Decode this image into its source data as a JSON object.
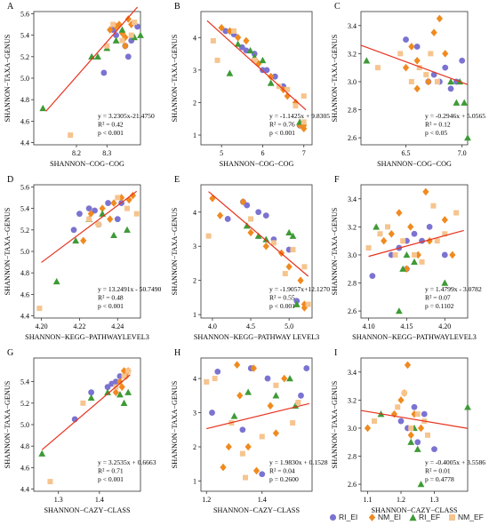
{
  "colors": {
    "RI_EI": "#7b73d1",
    "NM_EI": "#f08a1f",
    "RI_EF": "#3e9a36",
    "NM_EF": "#f6c48e",
    "fit": "#e8321e",
    "frame": "#333333"
  },
  "legend": [
    {
      "key": "RI_EI",
      "label": "RI_EI",
      "shape": "circle"
    },
    {
      "key": "NM_EI",
      "label": "NM_EI",
      "shape": "diamond"
    },
    {
      "key": "RI_EF",
      "label": "RI_EF",
      "shape": "triangle"
    },
    {
      "key": "NM_EF",
      "label": "NM_EF",
      "shape": "square"
    }
  ],
  "chart_data": [
    {
      "panel": "A",
      "type": "scatter",
      "xlabel": "SHANNON−COG−COG",
      "ylabel": "SHANNON−TAXA−GENUS",
      "xlim": [
        8.06,
        8.41
      ],
      "ylim": [
        4.38,
        5.62
      ],
      "xticks": [
        "8.2",
        "8.3"
      ],
      "yticks": [
        "4.4",
        "4.6",
        "4.8",
        "5.0",
        "5.2",
        "5.4",
        "5.6"
      ],
      "fit": {
        "slope": 3.2305,
        "intercept": -21.475,
        "x_range": [
          8.1,
          8.4
        ]
      },
      "stats": [
        "y = 3.2305x-21.4750",
        "R² = 0.42",
        "p < 0.001"
      ],
      "series": [
        {
          "group": "RI_EI",
          "x": [
            8.29,
            8.33,
            8.36,
            8.37,
            8.4,
            8.32,
            8.38
          ],
          "y": [
            5.05,
            5.4,
            5.3,
            5.2,
            5.48,
            5.45,
            5.35
          ]
        },
        {
          "group": "NM_EI",
          "x": [
            8.31,
            8.34,
            8.35,
            8.36,
            8.37,
            8.38,
            8.33,
            8.36
          ],
          "y": [
            5.45,
            5.5,
            5.42,
            5.38,
            5.55,
            5.5,
            5.48,
            5.3
          ]
        },
        {
          "group": "RI_EF",
          "x": [
            8.09,
            8.25,
            8.27,
            8.3,
            8.33,
            8.39,
            8.41,
            8.35
          ],
          "y": [
            4.72,
            5.2,
            5.2,
            5.28,
            5.35,
            5.38,
            5.4,
            5.45
          ]
        },
        {
          "group": "NM_EF",
          "x": [
            8.18,
            8.3,
            8.32,
            8.39,
            8.38,
            8.35
          ],
          "y": [
            4.47,
            5.3,
            5.5,
            5.52,
            5.4,
            5.35
          ]
        }
      ]
    },
    {
      "panel": "B",
      "type": "scatter",
      "xlabel": "SHANNON−COG−COG",
      "ylabel": "SHANNON−TAXA−GENUS",
      "xlim": [
        4.5,
        7.2
      ],
      "ylim": [
        0.7,
        4.8
      ],
      "xticks": [
        "5",
        "6",
        "7"
      ],
      "yticks": [
        "1",
        "2",
        "3",
        "4"
      ],
      "fit": {
        "slope": -1.1425,
        "intercept": 9.8305,
        "x_range": [
          4.65,
          7.05
        ]
      },
      "stats": [
        "y = -1.1425x + 9.8305",
        "R² = 0.76",
        "p < 0.001"
      ],
      "series": [
        {
          "group": "RI_EI",
          "x": [
            5.1,
            5.3,
            5.6,
            5.8,
            6.0,
            6.1,
            6.3,
            6.5,
            6.9,
            5.5
          ],
          "y": [
            4.2,
            4.1,
            3.6,
            3.5,
            3.0,
            3.0,
            2.8,
            2.5,
            1.3,
            3.7
          ]
        },
        {
          "group": "NM_EI",
          "x": [
            5.0,
            5.2,
            5.4,
            5.9,
            6.2,
            6.5,
            6.6,
            6.8,
            6.9,
            7.0,
            7.0,
            5.6
          ],
          "y": [
            4.3,
            4.2,
            4.0,
            3.2,
            2.8,
            2.4,
            2.2,
            2.0,
            1.3,
            1.3,
            1.2,
            3.9
          ]
        },
        {
          "group": "RI_EF",
          "x": [
            5.2,
            5.4,
            5.7,
            5.8,
            6.0,
            6.2,
            6.9
          ],
          "y": [
            2.9,
            3.8,
            3.6,
            3.4,
            3.3,
            2.6,
            1.4
          ]
        },
        {
          "group": "NM_EF",
          "x": [
            4.8,
            4.9,
            5.3,
            5.8,
            6.4,
            6.6,
            6.8,
            7.0,
            7.0
          ],
          "y": [
            3.9,
            3.3,
            4.2,
            3.3,
            2.5,
            2.4,
            1.9,
            2.2,
            1.4
          ]
        }
      ]
    },
    {
      "panel": "C",
      "type": "scatter",
      "xlabel": "SHANNON−COG−COG",
      "ylabel": "SHANNON−TAXA−GENUS",
      "xlim": [
        6.1,
        7.05
      ],
      "ylim": [
        2.55,
        3.5
      ],
      "xticks": [
        "6.5",
        "7.0"
      ],
      "yticks": [
        "2.6",
        "2.8",
        "3.0",
        "3.2",
        "3.4"
      ],
      "fit": {
        "slope": -0.2946,
        "intercept": 5.0565,
        "x_range": [
          6.1,
          7.05
        ]
      },
      "stats": [
        "y = -0.2946x + 5.0565",
        "R² = 0.12",
        "p < 0.05"
      ],
      "series": [
        {
          "group": "RI_EI",
          "x": [
            6.5,
            6.6,
            6.75,
            6.8,
            6.85,
            6.9,
            6.95,
            7.0,
            6.7
          ],
          "y": [
            3.3,
            3.25,
            3.05,
            3.0,
            3.1,
            2.95,
            3.0,
            3.15,
            3.0
          ]
        },
        {
          "group": "NM_EI",
          "x": [
            6.5,
            6.55,
            6.6,
            6.7,
            6.75,
            6.8,
            6.85,
            6.6
          ],
          "y": [
            3.1,
            3.25,
            3.15,
            3.0,
            3.35,
            3.45,
            3.2,
            2.95
          ]
        },
        {
          "group": "RI_EF",
          "x": [
            6.15,
            6.9,
            6.95,
            7.02,
            7.05,
            6.98
          ],
          "y": [
            3.15,
            3.0,
            2.85,
            2.85,
            2.6,
            3.0
          ]
        },
        {
          "group": "NM_EF",
          "x": [
            6.25,
            6.45,
            6.55,
            6.62,
            6.68,
            6.72,
            6.78
          ],
          "y": [
            3.1,
            3.2,
            3.0,
            3.1,
            3.05,
            3.2,
            3.0
          ]
        }
      ]
    },
    {
      "panel": "D",
      "type": "scatter",
      "xlabel": "SHANNON−KEGG−PATHWAYLEVEL3",
      "ylabel": "SHANNON−TAXA−GENUS",
      "xlim": [
        4.196,
        4.252
      ],
      "ylim": [
        4.38,
        5.62
      ],
      "xticks": [
        "4.20",
        "4.22",
        "4.24"
      ],
      "yticks": [
        "4.4",
        "4.6",
        "4.8",
        "5.0",
        "5.2",
        "5.4",
        "5.6"
      ],
      "fit": {
        "slope": 13.2491,
        "intercept": -50.749,
        "x_range": [
          4.2,
          4.25
        ]
      },
      "stats": [
        "y = 13.2491x - 50.7490",
        "R² = 0.48",
        "p < 0.001"
      ],
      "series": [
        {
          "group": "RI_EI",
          "x": [
            4.217,
            4.22,
            4.225,
            4.23,
            4.235,
            4.24,
            4.242,
            4.228
          ],
          "y": [
            5.2,
            5.35,
            5.4,
            5.25,
            5.45,
            5.3,
            5.45,
            5.38
          ]
        },
        {
          "group": "NM_EI",
          "x": [
            4.222,
            4.226,
            4.232,
            4.238,
            4.242,
            4.246,
            4.248,
            4.236
          ],
          "y": [
            5.1,
            5.35,
            5.4,
            5.45,
            5.5,
            5.48,
            5.52,
            5.3
          ]
        },
        {
          "group": "RI_EF",
          "x": [
            4.208,
            4.218,
            4.225,
            4.232,
            4.238,
            4.245
          ],
          "y": [
            4.72,
            5.1,
            5.3,
            5.35,
            5.15,
            5.2
          ]
        },
        {
          "group": "NM_EF",
          "x": [
            4.199,
            4.225,
            4.23,
            4.24,
            4.245,
            4.25
          ],
          "y": [
            4.47,
            5.3,
            5.25,
            5.5,
            5.4,
            5.35
          ]
        }
      ]
    },
    {
      "panel": "E",
      "type": "scatter",
      "xlabel": "SHANNON−KEGG−PATHWAY LEVEL3",
      "ylabel": "SHANNON−TAXA−GENUS",
      "xlim": [
        3.85,
        5.3
      ],
      "ylim": [
        0.9,
        4.8
      ],
      "xticks": [
        "4.0",
        "4.5",
        "5.0"
      ],
      "yticks": [
        "1",
        "2",
        "3",
        "4"
      ],
      "fit": {
        "slope": -1.9057,
        "intercept": 12.127,
        "x_range": [
          3.95,
          5.25
        ]
      },
      "stats": [
        "y = -1.9057x+12.1270",
        "R² = 0.55",
        "p < 0.001"
      ],
      "series": [
        {
          "group": "RI_EI",
          "x": [
            4.2,
            4.4,
            4.45,
            4.6,
            4.7,
            4.8,
            5.0,
            5.1
          ],
          "y": [
            3.8,
            4.3,
            4.2,
            4.0,
            3.9,
            3.2,
            2.9,
            1.4
          ]
        },
        {
          "group": "NM_EI",
          "x": [
            4.0,
            4.1,
            4.4,
            4.5,
            4.7,
            4.9,
            5.0,
            5.15,
            5.2,
            5.2
          ],
          "y": [
            4.4,
            3.9,
            4.3,
            3.4,
            3.0,
            2.8,
            2.4,
            2.0,
            1.3,
            1.2
          ]
        },
        {
          "group": "RI_EF",
          "x": [
            4.45,
            4.6,
            4.7,
            5.0,
            5.05,
            5.1
          ],
          "y": [
            3.6,
            3.3,
            3.2,
            3.4,
            3.3,
            1.3
          ]
        },
        {
          "group": "NM_EF",
          "x": [
            3.95,
            4.5,
            4.8,
            4.95,
            5.05,
            5.2,
            5.25
          ],
          "y": [
            3.3,
            3.8,
            3.1,
            2.2,
            2.9,
            2.4,
            1.3
          ]
        }
      ]
    },
    {
      "panel": "F",
      "type": "scatter",
      "xlabel": "SHANNON−KEGG−PATHWAYLEVEL3",
      "ylabel": "SHANNON−TAXA−GENUS",
      "xlim": [
        4.09,
        4.23
      ],
      "ylim": [
        2.55,
        3.5
      ],
      "xticks": [
        "4.10",
        "4.15",
        "4.20"
      ],
      "yticks": [
        "2.6",
        "2.8",
        "3.0",
        "3.2",
        "3.4"
      ],
      "fit": {
        "slope": 1.4799,
        "intercept": -3.0782,
        "x_range": [
          4.1,
          4.225
        ]
      },
      "stats": [
        "y = 1.4799x - 3.0782",
        "R² = 0.07",
        "p = 0.1102"
      ],
      "series": [
        {
          "group": "RI_EI",
          "x": [
            4.105,
            4.13,
            4.14,
            4.15,
            4.16,
            4.17,
            4.18,
            4.2,
            4.15
          ],
          "y": [
            2.85,
            3.0,
            3.05,
            2.9,
            3.15,
            3.1,
            3.2,
            3.0,
            3.1
          ]
        },
        {
          "group": "NM_EI",
          "x": [
            4.12,
            4.13,
            4.14,
            4.155,
            4.165,
            4.175,
            4.18,
            4.2,
            4.21,
            4.15
          ],
          "y": [
            3.1,
            3.15,
            3.3,
            3.2,
            3.0,
            3.45,
            3.1,
            3.25,
            3.0,
            2.9
          ]
        },
        {
          "group": "RI_EF",
          "x": [
            4.11,
            4.14,
            4.145,
            4.15,
            4.16,
            4.2
          ],
          "y": [
            3.2,
            2.6,
            2.9,
            3.0,
            2.95,
            2.8
          ]
        },
        {
          "group": "NM_EF",
          "x": [
            4.1,
            4.115,
            4.125,
            4.135,
            4.145,
            4.16,
            4.17,
            4.185,
            4.19,
            4.2,
            4.215
          ],
          "y": [
            3.05,
            3.15,
            3.2,
            3.0,
            3.1,
            3.0,
            2.95,
            3.35,
            3.1,
            3.15,
            3.3
          ]
        }
      ]
    },
    {
      "panel": "G",
      "type": "scatter",
      "xlabel": "SHANNON−CAZY−CLASS",
      "ylabel": "SHANNON−TAXA−GENUS",
      "xlim": [
        1.24,
        1.5
      ],
      "ylim": [
        4.38,
        5.62
      ],
      "xticks": [
        "1.3",
        "1.4"
      ],
      "yticks": [
        "4.4",
        "4.6",
        "4.8",
        "5.0",
        "5.2",
        "5.4"
      ],
      "fit": {
        "slope": 3.2535,
        "intercept": 0.6663,
        "x_range": [
          1.26,
          1.475
        ]
      },
      "stats": [
        "y = 3.2535x + 0.6663",
        "R² = 0.71",
        "p < 0.001"
      ],
      "series": [
        {
          "group": "RI_EI",
          "x": [
            1.34,
            1.38,
            1.42,
            1.44,
            1.45,
            1.43
          ],
          "y": [
            5.05,
            5.3,
            5.35,
            5.4,
            5.45,
            5.38
          ]
        },
        {
          "group": "NM_EI",
          "x": [
            1.44,
            1.45,
            1.46,
            1.465,
            1.47,
            1.455
          ],
          "y": [
            5.3,
            5.4,
            5.5,
            5.45,
            5.5,
            5.35
          ]
        },
        {
          "group": "RI_EF",
          "x": [
            1.26,
            1.38,
            1.42,
            1.45,
            1.47,
            1.46
          ],
          "y": [
            4.73,
            5.25,
            5.3,
            5.28,
            5.3,
            5.2
          ]
        },
        {
          "group": "NM_EF",
          "x": [
            1.28,
            1.36,
            1.44,
            1.46,
            1.47
          ],
          "y": [
            4.47,
            5.2,
            5.35,
            5.45,
            5.5
          ]
        }
      ]
    },
    {
      "panel": "H",
      "type": "scatter",
      "xlabel": "SHANNON−CAZY−CLASS",
      "ylabel": "SHANNON−TAXA−GENUS",
      "xlim": [
        1.18,
        1.58
      ],
      "ylim": [
        0.7,
        4.6
      ],
      "xticks": [
        "1.2",
        "1.4"
      ],
      "yticks": [
        "1",
        "2",
        "3",
        "4"
      ],
      "fit": {
        "slope": 1.983,
        "intercept": 0.1528,
        "x_range": [
          1.2,
          1.57
        ]
      },
      "stats": [
        "y = 1.9830x + 0.1528",
        "R² = 0.04",
        "p = 0.2600"
      ],
      "series": [
        {
          "group": "RI_EI",
          "x": [
            1.22,
            1.24,
            1.33,
            1.36,
            1.4,
            1.42,
            1.54,
            1.56
          ],
          "y": [
            3.0,
            4.2,
            2.5,
            4.3,
            1.2,
            4.0,
            3.5,
            4.3
          ]
        },
        {
          "group": "NM_EI",
          "x": [
            1.26,
            1.28,
            1.31,
            1.32,
            1.35,
            1.37,
            1.38,
            1.43,
            1.45,
            1.48
          ],
          "y": [
            1.4,
            2.0,
            4.4,
            3.5,
            2.0,
            4.3,
            1.3,
            3.2,
            2.4,
            4.0
          ]
        },
        {
          "group": "RI_EF",
          "x": [
            1.3,
            1.35,
            1.45,
            1.5,
            1.52
          ],
          "y": [
            2.9,
            3.6,
            3.5,
            4.0,
            3.2
          ]
        },
        {
          "group": "NM_EF",
          "x": [
            1.2,
            1.23,
            1.29,
            1.33,
            1.34,
            1.4,
            1.45,
            1.51,
            1.53
          ],
          "y": [
            3.9,
            4.0,
            2.7,
            1.8,
            1.1,
            2.3,
            3.8,
            2.7,
            3.3
          ]
        }
      ]
    },
    {
      "panel": "I",
      "type": "scatter",
      "xlabel": "SHANNON−CAZY−CLASS",
      "ylabel": "SHANNON−TAXA−GENUS",
      "xlim": [
        1.08,
        1.4
      ],
      "ylim": [
        2.55,
        3.5
      ],
      "xticks": [
        "1.1",
        "1.2",
        "1.3"
      ],
      "yticks": [
        "2.6",
        "2.8",
        "3.0",
        "3.2",
        "3.4"
      ],
      "fit": {
        "slope": -0.4005,
        "intercept": 3.5586,
        "x_range": [
          1.08,
          1.4
        ]
      },
      "stats": [
        "y = -0.4005x + 3.5586",
        "R² = 0.01",
        "p = 0.4778"
      ],
      "series": [
        {
          "group": "RI_EI",
          "x": [
            1.2,
            1.22,
            1.24,
            1.25,
            1.27,
            1.3
          ],
          "y": [
            3.05,
            3.0,
            3.15,
            2.9,
            3.1,
            2.85
          ]
        },
        {
          "group": "NM_EI",
          "x": [
            1.1,
            1.18,
            1.2,
            1.21,
            1.22,
            1.23,
            1.24,
            1.26
          ],
          "y": [
            3.0,
            3.1,
            3.2,
            3.25,
            3.45,
            2.95,
            3.1,
            3.0
          ]
        },
        {
          "group": "RI_EF",
          "x": [
            1.14,
            1.23,
            1.24,
            1.25,
            1.26,
            1.4
          ],
          "y": [
            3.1,
            2.9,
            3.0,
            2.85,
            2.6,
            3.15
          ]
        },
        {
          "group": "NM_EF",
          "x": [
            1.12,
            1.19,
            1.21,
            1.23,
            1.25,
            1.27,
            1.28
          ],
          "y": [
            3.05,
            3.15,
            3.25,
            3.0,
            3.1,
            3.05,
            2.95
          ]
        }
      ]
    }
  ]
}
